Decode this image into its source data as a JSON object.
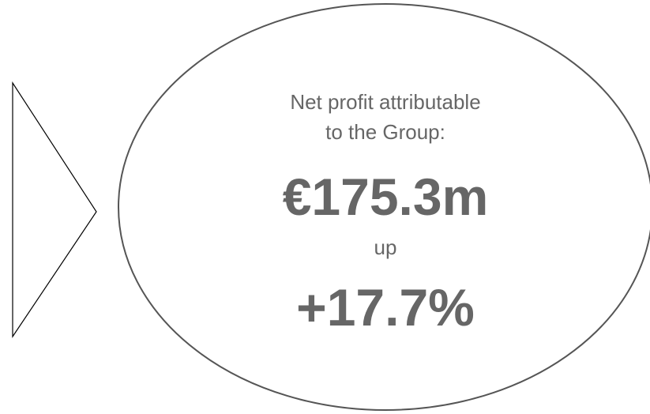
{
  "label_line1": "Net profit attributable",
  "label_line2": "to the Group:",
  "amount": "€175.3m",
  "connector": "up",
  "change": "+17.7%"
}
